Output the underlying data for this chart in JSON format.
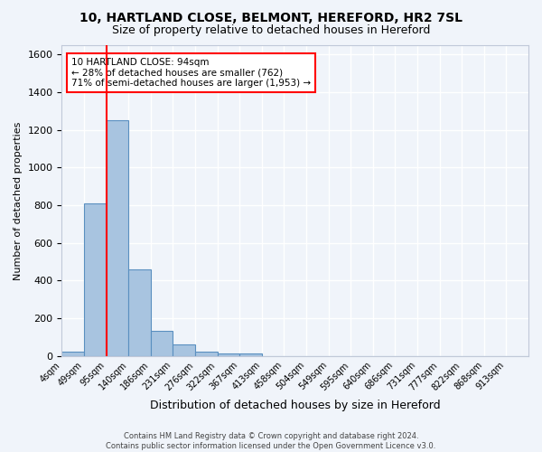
{
  "title_line1": "10, HARTLAND CLOSE, BELMONT, HEREFORD, HR2 7SL",
  "title_line2": "Size of property relative to detached houses in Hereford",
  "xlabel": "Distribution of detached houses by size in Hereford",
  "ylabel": "Number of detached properties",
  "footnote_line1": "Contains HM Land Registry data © Crown copyright and database right 2024.",
  "footnote_line2": "Contains public sector information licensed under the Open Government Licence v3.0.",
  "bin_labels": [
    "4sqm",
    "49sqm",
    "95sqm",
    "140sqm",
    "186sqm",
    "231sqm",
    "276sqm",
    "322sqm",
    "367sqm",
    "413sqm",
    "458sqm",
    "504sqm",
    "549sqm",
    "595sqm",
    "640sqm",
    "686sqm",
    "731sqm",
    "777sqm",
    "822sqm",
    "868sqm",
    "913sqm"
  ],
  "bar_values": [
    25,
    810,
    1250,
    460,
    135,
    60,
    25,
    15,
    12,
    0,
    0,
    0,
    0,
    0,
    0,
    0,
    0,
    0,
    0,
    0,
    0
  ],
  "bar_color": "#a8c4e0",
  "bar_edge_color": "#5a8fc0",
  "background_color": "#f0f4fa",
  "grid_color": "#ffffff",
  "property_bin_index": 2,
  "annotation_box_text": "10 HARTLAND CLOSE: 94sqm\n← 28% of detached houses are smaller (762)\n71% of semi-detached houses are larger (1,953) →",
  "ylim": [
    0,
    1650
  ],
  "yticks": [
    0,
    200,
    400,
    600,
    800,
    1000,
    1200,
    1400,
    1600
  ]
}
